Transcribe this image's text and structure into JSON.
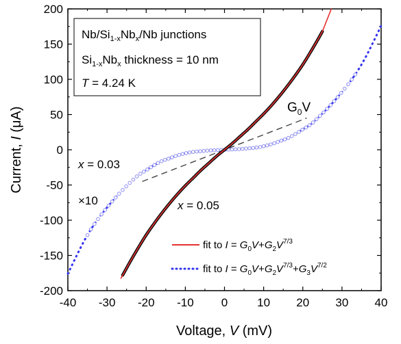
{
  "chart_data": {
    "type": "line",
    "title": "",
    "xlabel": "Voltage, V (mV)",
    "ylabel": "Current, I (μA)",
    "xlim": [
      -40,
      40
    ],
    "ylim": [
      -200,
      200
    ],
    "xticks": [
      -40,
      -30,
      -20,
      -10,
      0,
      10,
      20,
      30,
      40
    ],
    "yticks": [
      -200,
      -150,
      -100,
      -50,
      0,
      50,
      100,
      150,
      200
    ],
    "xlabel_parts": {
      "pre": "Voltage, ",
      "var": "V",
      "post": " (mV)"
    },
    "ylabel_parts": {
      "pre": "Current, ",
      "var": "I",
      "post": " (μA)"
    },
    "legend": {
      "position": "bottom-right",
      "entries": [
        {
          "series": "x = 0.05 data + fit",
          "line": "solid",
          "color": "#e53030",
          "label": "fit to I = G0V+G2V^(7/3)"
        },
        {
          "series": "x = 0.03 data (×10) + fit",
          "line": "dotted",
          "color": "#3333ee",
          "label": "fit to I = G0V+G2V^(7/3)+G3V^(7/2)"
        }
      ],
      "fit1_label": {
        "pre": "fit to ",
        "I": "I",
        "eq": " = ",
        "G": "G",
        "s0": "0",
        "V": "V",
        "plus": "+",
        "s2": "2",
        "e1": "7/3"
      },
      "fit2_label": {
        "pre": "fit to ",
        "I": "I",
        "eq": " = ",
        "G": "G",
        "s0": "0",
        "V": "V",
        "plus": "+",
        "s2": "2",
        "e1": "7/3",
        "s3": "3",
        "e2": "7/2"
      }
    },
    "info_box": {
      "line1": {
        "a": "Nb/Si",
        "sub": "1-x",
        "b": "Nb",
        "sub2": "x",
        "c": "/Nb junctions"
      },
      "line2": {
        "a": "Si",
        "sub": "1-x",
        "b": "Nb",
        "sub2": "x",
        "c": " thickness = 10 nm"
      },
      "line3": {
        "var": "T",
        "rest": " = 4.24 K"
      }
    },
    "annotations": {
      "g0v": {
        "G": "G",
        "sub": "0",
        "V": "V"
      },
      "x003": {
        "var": "x",
        "rest": " = 0.03"
      },
      "x005": {
        "var": "x",
        "rest": " = 0.05"
      },
      "times10": "×10"
    },
    "series": [
      {
        "name": "x = 0.05",
        "style": "data points with solid red fit",
        "data_color": "#111111",
        "fit_color": "#e53030",
        "x": [
          -26,
          -24,
          -22,
          -20,
          -18,
          -16,
          -14,
          -12,
          -10,
          -8,
          -6,
          -4,
          -2,
          0,
          2,
          4,
          6,
          8,
          10,
          12,
          14,
          16,
          18,
          20,
          22,
          24,
          25
        ],
        "y": [
          -178,
          -158,
          -139,
          -121,
          -105,
          -90,
          -76,
          -63,
          -51,
          -40,
          -29,
          -19,
          -9,
          0,
          9,
          19,
          29,
          40,
          51,
          63,
          76,
          90,
          105,
          121,
          139,
          158,
          168
        ]
      },
      {
        "name": "x = 0.03",
        "style": "open circle data points with blue dotted fit",
        "data_color": "#8c8cf0",
        "fit_color": "#3333ee",
        "x": [
          -40,
          -38,
          -36,
          -34,
          -32,
          -30,
          -28,
          -26,
          -24,
          -22,
          -20,
          -18,
          -16,
          -14,
          -12,
          -10,
          -8,
          -6,
          -4,
          -2,
          0,
          2,
          4,
          6,
          8,
          10,
          12,
          14,
          16,
          18,
          20,
          22,
          24,
          26,
          28,
          30,
          32,
          34,
          36,
          38,
          40
        ],
        "y": [
          -176,
          -153,
          -131,
          -112,
          -96,
          -82,
          -69,
          -57,
          -46,
          -36,
          -29,
          -22,
          -16,
          -12,
          -8,
          -5,
          -3,
          -2,
          -1,
          -0.5,
          0,
          0.5,
          1,
          2,
          3,
          5,
          8,
          12,
          16,
          22,
          29,
          36,
          46,
          57,
          69,
          82,
          96,
          112,
          131,
          153,
          176
        ]
      },
      {
        "name": "G0V",
        "style": "dashed reference line",
        "color": "#444444",
        "x": [
          -21,
          21
        ],
        "y": [
          -45,
          45
        ]
      }
    ]
  }
}
